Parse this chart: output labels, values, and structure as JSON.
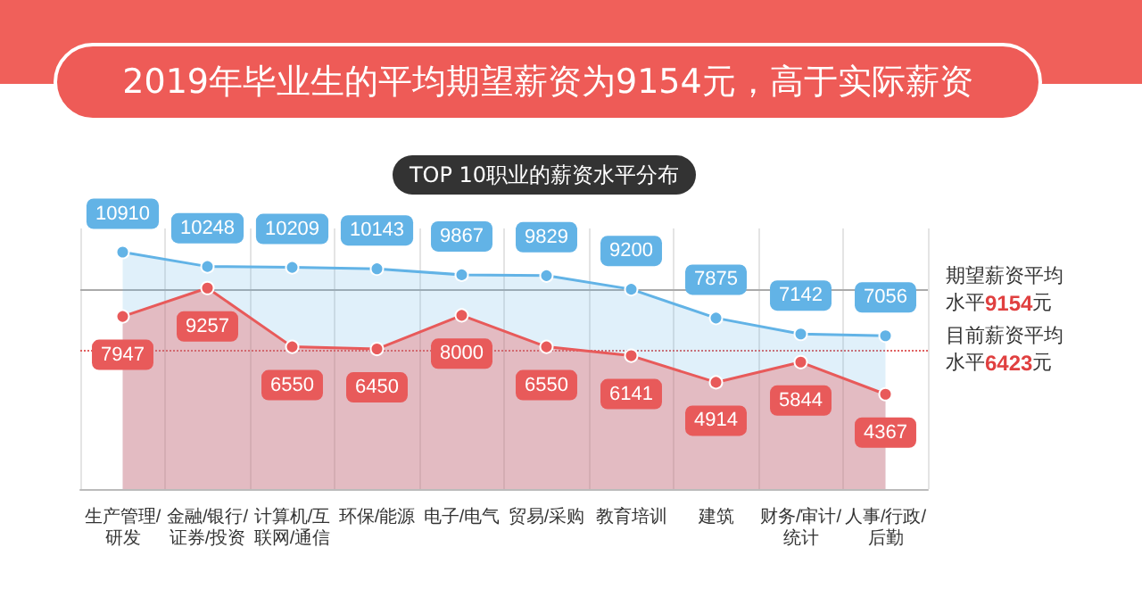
{
  "chart_data": {
    "type": "area",
    "title": "2019年毕业生的平均期望薪资为9154元，高于实际薪资",
    "subtitle": "TOP 10职业的薪资水平分布",
    "categories": [
      "生产管理/研发",
      "金融/银行/证券/投资",
      "计算机/互联网/通信",
      "环保/能源",
      "电子/电气",
      "贸易/采购",
      "教育培训",
      "建筑",
      "财务/审计/统计",
      "人事/行政/后勤"
    ],
    "series": [
      {
        "color": "#62b3e6",
        "values": [
          10910,
          10248,
          10209,
          10143,
          9867,
          9829,
          9200,
          7875,
          7142,
          7056
        ]
      },
      {
        "color": "#e85a5a",
        "values": [
          7947,
          9257,
          6550,
          6450,
          8000,
          6550,
          6141,
          4914,
          5844,
          4367
        ]
      }
    ],
    "ref_lines": [
      {
        "axis": "y",
        "value": 9154,
        "label": "期望薪资平均水平9154元",
        "color": "#aaaaaa",
        "line_style": "solid"
      },
      {
        "axis": "y",
        "value": 6423,
        "label": "目前薪资平均水平6423元",
        "color": "#e06060",
        "line_style": "dotted"
      }
    ],
    "data_labels": true,
    "grid": "x",
    "marker": "circle",
    "line_style": "solid"
  }
}
